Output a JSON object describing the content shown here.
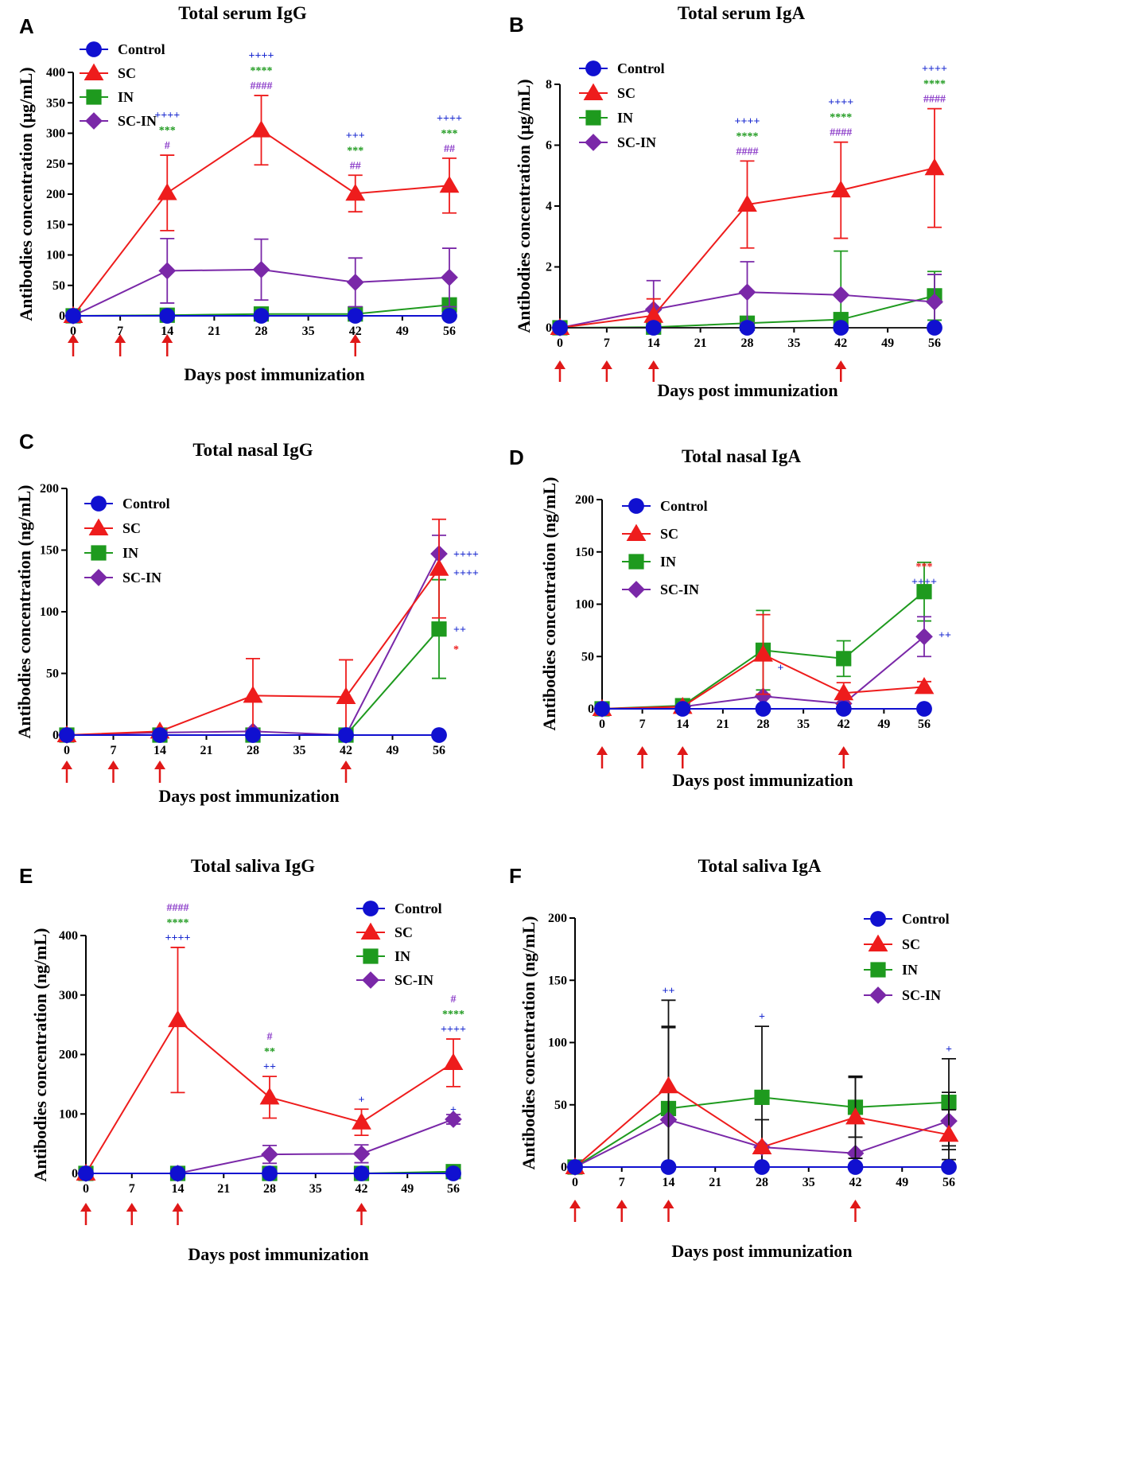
{
  "colors": {
    "Control": "#1010d0",
    "SC": "#ee1c1c",
    "IN": "#1e9a1e",
    "SC-IN": "#7a28a8",
    "plus": "#1a2ad0",
    "star": "#1e9a1e",
    "hash": "#8a3ac8",
    "arrow": "#e01818"
  },
  "chart_data": [
    {
      "panel": "A",
      "type": "line",
      "title": "Total serum IgG",
      "xlabel": "Days post immunization",
      "ylabel": "Antibodies concentration (μg/mL)",
      "x": [
        0,
        14,
        28,
        42,
        56
      ],
      "xticks": [
        0,
        7,
        14,
        21,
        28,
        35,
        42,
        49,
        56
      ],
      "yticks": [
        0,
        50,
        100,
        150,
        200,
        250,
        300,
        350,
        400
      ],
      "ylim": [
        0,
        400
      ],
      "legend": [
        "Control",
        "SC",
        "IN",
        "SC-IN"
      ],
      "immunization_days": [
        0,
        7,
        14,
        42
      ],
      "series": [
        {
          "name": "Control",
          "values": [
            0,
            0,
            0,
            0,
            0
          ],
          "err": [
            0,
            0,
            0,
            0,
            0
          ]
        },
        {
          "name": "SC",
          "values": [
            0,
            202,
            305,
            201,
            214
          ],
          "err": [
            0,
            62,
            57,
            30,
            45
          ]
        },
        {
          "name": "IN",
          "values": [
            0,
            1,
            3,
            3,
            18
          ],
          "err": [
            0,
            0,
            0,
            0,
            0
          ]
        },
        {
          "name": "SC-IN",
          "values": [
            0,
            74,
            76,
            55,
            63
          ],
          "err": [
            0,
            53,
            50,
            40,
            48
          ]
        }
      ],
      "annotations": [
        {
          "x": 14,
          "rows": [
            {
              "text": "++++",
              "kind": "plus"
            },
            {
              "text": "***",
              "kind": "star"
            },
            {
              "text": "#",
              "kind": "hash"
            }
          ]
        },
        {
          "x": 28,
          "rows": [
            {
              "text": "++++",
              "kind": "plus"
            },
            {
              "text": "****",
              "kind": "star"
            },
            {
              "text": "####",
              "kind": "hash"
            }
          ]
        },
        {
          "x": 42,
          "rows": [
            {
              "text": "+++",
              "kind": "plus"
            },
            {
              "text": "***",
              "kind": "star"
            },
            {
              "text": "##",
              "kind": "hash"
            }
          ]
        },
        {
          "x": 56,
          "rows": [
            {
              "text": "++++",
              "kind": "plus"
            },
            {
              "text": "***",
              "kind": "star"
            },
            {
              "text": "##",
              "kind": "hash"
            }
          ]
        }
      ]
    },
    {
      "panel": "B",
      "type": "line",
      "title": "Total serum IgA",
      "xlabel": "Days post immunization",
      "ylabel": "Antibodies concentration (μg/mL)",
      "x": [
        0,
        14,
        28,
        42,
        56
      ],
      "xticks": [
        0,
        7,
        14,
        21,
        28,
        35,
        42,
        49,
        56
      ],
      "yticks": [
        0,
        2,
        4,
        6,
        8
      ],
      "ylim": [
        0,
        8
      ],
      "legend": [
        "Control",
        "SC",
        "IN",
        "SC-IN"
      ],
      "immunization_days": [
        0,
        7,
        14,
        42
      ],
      "series": [
        {
          "name": "Control",
          "values": [
            0,
            0,
            0,
            0,
            0
          ],
          "err": [
            0,
            0,
            0,
            0,
            0
          ]
        },
        {
          "name": "SC",
          "values": [
            0,
            0.4,
            4.05,
            4.52,
            5.25
          ],
          "err": [
            0,
            0.55,
            1.43,
            1.58,
            1.95
          ]
        },
        {
          "name": "IN",
          "values": [
            0,
            0.02,
            0.15,
            0.27,
            1.05
          ],
          "err": [
            0,
            0,
            0,
            2.25,
            0.8
          ]
        },
        {
          "name": "SC-IN",
          "values": [
            0,
            0.6,
            1.17,
            1.08,
            0.85
          ],
          "err": [
            0,
            0.95,
            1.0,
            0,
            0.9
          ]
        }
      ],
      "annotations": [
        {
          "x": 28,
          "rows": [
            {
              "text": "++++",
              "kind": "plus"
            },
            {
              "text": "****",
              "kind": "star"
            },
            {
              "text": "####",
              "kind": "hash"
            }
          ]
        },
        {
          "x": 42,
          "rows": [
            {
              "text": "++++",
              "kind": "plus"
            },
            {
              "text": "****",
              "kind": "star"
            },
            {
              "text": "####",
              "kind": "hash"
            }
          ]
        },
        {
          "x": 56,
          "rows": [
            {
              "text": "++++",
              "kind": "plus"
            },
            {
              "text": "****",
              "kind": "star"
            },
            {
              "text": "####",
              "kind": "hash"
            }
          ]
        }
      ]
    },
    {
      "panel": "C",
      "type": "line",
      "title": "Total nasal IgG",
      "xlabel": "Days post immunization",
      "ylabel": "Antibodies concentration (ng/mL)",
      "x": [
        0,
        14,
        28,
        42,
        56
      ],
      "xticks": [
        0,
        7,
        14,
        21,
        28,
        35,
        42,
        49,
        56
      ],
      "yticks": [
        0,
        50,
        100,
        150,
        200
      ],
      "ylim": [
        0,
        200
      ],
      "legend": [
        "Control",
        "SC",
        "IN",
        "SC-IN"
      ],
      "immunization_days": [
        0,
        7,
        14,
        42
      ],
      "series": [
        {
          "name": "Control",
          "values": [
            0,
            0,
            0,
            0,
            0
          ],
          "err": [
            0,
            0,
            0,
            0,
            0
          ]
        },
        {
          "name": "SC",
          "values": [
            0,
            3,
            32,
            31,
            135
          ],
          "err": [
            0,
            0,
            30,
            30,
            40
          ]
        },
        {
          "name": "IN",
          "values": [
            0,
            0,
            0,
            0,
            86
          ],
          "err": [
            0,
            0,
            0,
            0,
            40
          ]
        },
        {
          "name": "SC-IN",
          "values": [
            0,
            2,
            3,
            0,
            147
          ],
          "err": [
            0,
            0,
            0,
            0,
            15
          ]
        }
      ],
      "annotations": [
        {
          "x": 56,
          "side": true,
          "dy": 147,
          "rows": [
            {
              "text": "++++",
              "kind": "plus"
            }
          ]
        },
        {
          "x": 56,
          "side": true,
          "dy": 132,
          "rows": [
            {
              "text": "++++",
              "kind": "plus"
            }
          ]
        },
        {
          "x": 56,
          "side": true,
          "dy": 86,
          "rows": [
            {
              "text": "++",
              "kind": "plus"
            }
          ]
        },
        {
          "x": 56,
          "side": true,
          "dy": 70,
          "rows": [
            {
              "text": "*",
              "kind": "sc"
            }
          ]
        }
      ]
    },
    {
      "panel": "D",
      "type": "line",
      "title": "Total nasal IgA",
      "xlabel": "Days post immunization",
      "ylabel": "Antibodies concentration (ng/mL)",
      "x": [
        0,
        14,
        28,
        42,
        56
      ],
      "xticks": [
        0,
        7,
        14,
        21,
        28,
        35,
        42,
        49,
        56
      ],
      "yticks": [
        0,
        50,
        100,
        150,
        200
      ],
      "ylim": [
        0,
        200
      ],
      "legend": [
        "Control",
        "SC",
        "IN",
        "SC-IN"
      ],
      "immunization_days": [
        0,
        7,
        14,
        42
      ],
      "series": [
        {
          "name": "Control",
          "values": [
            0,
            0,
            0,
            0,
            0
          ],
          "err": [
            0,
            0,
            0,
            0,
            0
          ]
        },
        {
          "name": "SC",
          "values": [
            0,
            2,
            52,
            15,
            21
          ],
          "err": [
            0,
            0,
            38,
            10,
            5
          ]
        },
        {
          "name": "IN",
          "values": [
            0,
            3,
            56,
            48,
            112
          ],
          "err": [
            0,
            0,
            38,
            17,
            28
          ]
        },
        {
          "name": "SC-IN",
          "values": [
            0,
            2,
            12,
            5,
            69
          ],
          "err": [
            0,
            0,
            0,
            0,
            19
          ]
        }
      ],
      "annotations": [
        {
          "x": 28,
          "side": true,
          "dy": 40,
          "rows": [
            {
              "text": "+",
              "kind": "plus"
            }
          ]
        },
        {
          "x": 56,
          "dy": 112,
          "rows": [
            {
              "text": "***",
              "kind": "sc"
            },
            {
              "text": "++++",
              "kind": "plus"
            }
          ]
        },
        {
          "x": 56,
          "side": true,
          "dy": 71,
          "rows": [
            {
              "text": "++",
              "kind": "plus"
            }
          ]
        }
      ]
    },
    {
      "panel": "E",
      "type": "line",
      "title": "Total saliva IgG",
      "xlabel": "Days post immunization",
      "ylabel": "Antibodies concentration (ng/mL)",
      "x": [
        0,
        14,
        28,
        42,
        56
      ],
      "xticks": [
        0,
        7,
        14,
        21,
        28,
        35,
        42,
        49,
        56
      ],
      "yticks": [
        0,
        100,
        200,
        300,
        400
      ],
      "ylim": [
        0,
        400
      ],
      "legend": [
        "Control",
        "SC",
        "IN",
        "SC-IN"
      ],
      "immunization_days": [
        0,
        7,
        14,
        42
      ],
      "series": [
        {
          "name": "Control",
          "values": [
            0,
            0,
            0,
            0,
            0
          ],
          "err": [
            0,
            0,
            0,
            0,
            0
          ]
        },
        {
          "name": "SC",
          "values": [
            0,
            258,
            128,
            86,
            186
          ],
          "err": [
            0,
            122,
            35,
            22,
            40
          ]
        },
        {
          "name": "IN",
          "values": [
            0,
            0,
            0,
            0,
            3
          ],
          "err": [
            0,
            0,
            0,
            0,
            0
          ]
        },
        {
          "name": "SC-IN",
          "values": [
            0,
            0,
            32,
            33,
            91
          ],
          "err": [
            0,
            0,
            15,
            15,
            8
          ]
        }
      ],
      "annotations": [
        {
          "x": 14,
          "rows": [
            {
              "text": "####",
              "kind": "hash"
            },
            {
              "text": "****",
              "kind": "star"
            },
            {
              "text": "++++",
              "kind": "plus"
            }
          ]
        },
        {
          "x": 28,
          "rows": [
            {
              "text": "#",
              "kind": "hash"
            },
            {
              "text": "**",
              "kind": "star"
            },
            {
              "text": "++",
              "kind": "plus"
            }
          ]
        },
        {
          "x": 42,
          "rows": [
            {
              "text": "+",
              "kind": "plus"
            }
          ]
        },
        {
          "x": 56,
          "rows": [
            {
              "text": "#",
              "kind": "hash"
            },
            {
              "text": "****",
              "kind": "star"
            },
            {
              "text": "++++",
              "kind": "plus"
            }
          ]
        },
        {
          "x": 56,
          "dy": 91,
          "rows": [
            {
              "text": "+",
              "kind": "plus"
            }
          ]
        }
      ]
    },
    {
      "panel": "F",
      "type": "line",
      "title": "Total saliva IgA",
      "xlabel": "Days post immunization",
      "ylabel": "Antibodies concentration (ng/mL)",
      "x": [
        0,
        14,
        28,
        42,
        56
      ],
      "xticks": [
        0,
        7,
        14,
        21,
        28,
        35,
        42,
        49,
        56
      ],
      "yticks": [
        0,
        50,
        100,
        150,
        200
      ],
      "ylim": [
        0,
        200
      ],
      "legend": [
        "Control",
        "SC",
        "IN",
        "SC-IN"
      ],
      "immunization_days": [
        0,
        7,
        14,
        42
      ],
      "series": [
        {
          "name": "Control",
          "values": [
            0,
            0,
            0,
            0,
            0
          ],
          "err": [
            0,
            0,
            0,
            0,
            0
          ]
        },
        {
          "name": "SC",
          "values": [
            0,
            65,
            16,
            40,
            26
          ],
          "err": [
            0,
            69,
            0,
            33,
            20
          ]
        },
        {
          "name": "IN",
          "values": [
            0,
            47,
            56,
            48,
            52
          ],
          "err": [
            0,
            66,
            57,
            24,
            35
          ]
        },
        {
          "name": "SC-IN",
          "values": [
            0,
            38,
            16,
            11,
            37
          ],
          "err": [
            0,
            74,
            22,
            0,
            23
          ]
        }
      ],
      "annotations": [
        {
          "x": 14,
          "rows": [
            {
              "text": "++",
              "kind": "plus"
            }
          ]
        },
        {
          "x": 28,
          "rows": [
            {
              "text": "+",
              "kind": "plus"
            }
          ]
        },
        {
          "x": 56,
          "rows": [
            {
              "text": "+",
              "kind": "plus"
            }
          ]
        }
      ]
    }
  ]
}
